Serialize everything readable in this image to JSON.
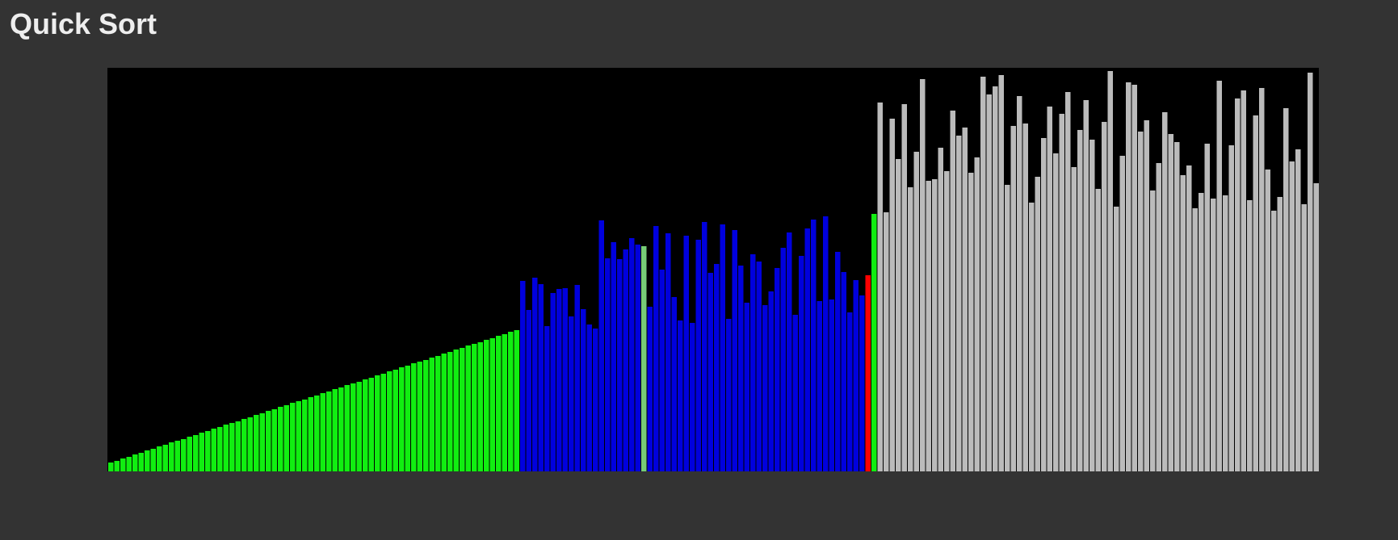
{
  "title": "Quick Sort",
  "colors": {
    "sorted": "#11ee11",
    "partition": "#0000dd",
    "compare": "#77cc77",
    "pivot": "#ff0000",
    "placed": "#11ee11",
    "unsorted": "#bbbbbb",
    "background": "#000000"
  },
  "chart_data": {
    "type": "bar",
    "ylim": [
      0,
      500
    ],
    "grid": false,
    "values": [
      11,
      13,
      16,
      18,
      21,
      23,
      26,
      28,
      31,
      33,
      36,
      38,
      40,
      43,
      45,
      48,
      50,
      53,
      55,
      58,
      60,
      62,
      65,
      67,
      70,
      72,
      75,
      77,
      80,
      82,
      85,
      87,
      89,
      92,
      94,
      97,
      99,
      102,
      104,
      107,
      109,
      111,
      114,
      116,
      119,
      121,
      124,
      126,
      129,
      131,
      134,
      136,
      138,
      141,
      143,
      146,
      148,
      151,
      153,
      156,
      158,
      160,
      163,
      165,
      168,
      170,
      173,
      175,
      236,
      200,
      240,
      232,
      180,
      221,
      226,
      227,
      192,
      231,
      201,
      182,
      177,
      311,
      264,
      284,
      263,
      275,
      289,
      281,
      279,
      204,
      304,
      250,
      295,
      216,
      187,
      292,
      184,
      287,
      309,
      246,
      257,
      306,
      189,
      299,
      255,
      209,
      269,
      260,
      206,
      223,
      252,
      277,
      296,
      194,
      267,
      301,
      312,
      211,
      316,
      213,
      272,
      247,
      197,
      237,
      218,
      243,
      319,
      457,
      321,
      437,
      387,
      455,
      352,
      396,
      486,
      360,
      362,
      401,
      372,
      447,
      416,
      426,
      370,
      389,
      489,
      467,
      477,
      491,
      355,
      428,
      465,
      431,
      333,
      365,
      413,
      452,
      394,
      443,
      470,
      377,
      423,
      460,
      411,
      350,
      433,
      496,
      328,
      391,
      482,
      479,
      421,
      435,
      348,
      382,
      445,
      418,
      408,
      367,
      379,
      326,
      345,
      406,
      338,
      484,
      342,
      404,
      462,
      472,
      336,
      441,
      475,
      374,
      323,
      340,
      450,
      384,
      399,
      331,
      494,
      357
    ],
    "states": [
      {
        "state": "sorted",
        "count": 68
      },
      {
        "state": "partition",
        "count": 20
      },
      {
        "state": "compare",
        "count": 1
      },
      {
        "state": "partition",
        "count": 36
      },
      {
        "state": "pivot",
        "count": 1
      },
      {
        "state": "placed",
        "count": 1
      },
      {
        "state": "unsorted",
        "count": 73
      }
    ]
  }
}
